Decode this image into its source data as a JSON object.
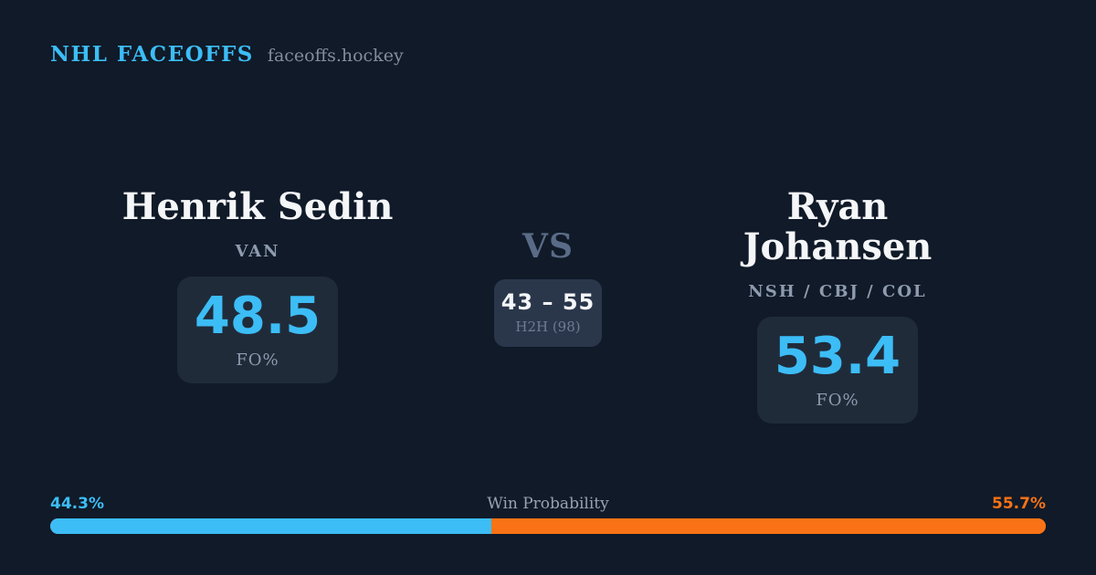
{
  "header": {
    "brand": "NHL FACEOFFS",
    "site": "faceoffs.hockey"
  },
  "left_player": {
    "name": "Henrik Sedin",
    "teams": "VAN",
    "stat_value": "48.5",
    "stat_label": "FO%"
  },
  "right_player": {
    "name": "Ryan Johansen",
    "teams": "NSH / CBJ / COL",
    "stat_value": "53.4",
    "stat_label": "FO%"
  },
  "matchup": {
    "vs_label": "VS",
    "h2h_score": "43 – 55",
    "h2h_caption": "H2H (98)"
  },
  "win_probability": {
    "label": "Win Probability",
    "left_pct_label": "44.3%",
    "right_pct_label": "55.7%",
    "left_value": 44.3,
    "right_value": 55.7
  },
  "colors": {
    "background": "#101a28",
    "card": "#202b3a",
    "h2h_card": "#2a374b",
    "accent_blue": "#3cbdf6",
    "accent_orange": "#f97316",
    "text_primary": "#f4f6f8",
    "text_secondary": "#8e9aae",
    "text_muted": "#6e7c92",
    "vs_color": "#5a6b87",
    "site_color": "#828d9f",
    "footer_label": "#98a2b4"
  }
}
